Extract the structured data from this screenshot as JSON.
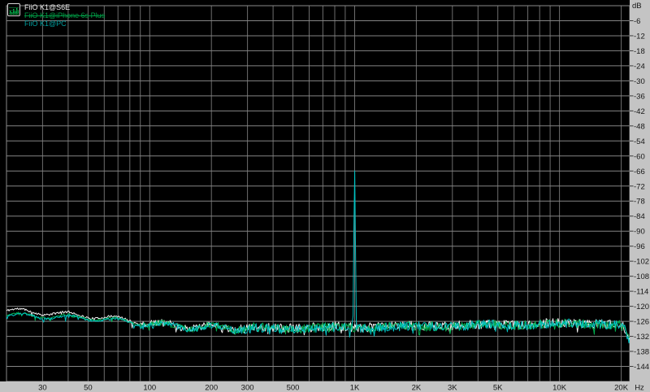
{
  "colors": {
    "plot_bg": "#000000",
    "panel_bg": "#c4c4c4",
    "grid_h": "#848484",
    "grid_v": "#6d6d6d",
    "frame": "#8a8a8a",
    "tick": "#3c3c3c",
    "label_text": "#161616",
    "icon_bar_green": "#00c050",
    "icon_grid_green": "#0a5a28"
  },
  "legend": {
    "icon_name": "spectrum-icon"
  },
  "chart_data": {
    "type": "line",
    "title": "",
    "x_axis": {
      "unit": "Hz",
      "scale": "log",
      "min": 20,
      "max": 22000,
      "gridlines": [
        20,
        30,
        40,
        50,
        60,
        70,
        80,
        90,
        100,
        200,
        300,
        400,
        500,
        600,
        700,
        800,
        900,
        1000,
        2000,
        3000,
        4000,
        5000,
        6000,
        7000,
        8000,
        9000,
        10000,
        20000
      ],
      "labeled_ticks": [
        {
          "f": 30,
          "label": "30"
        },
        {
          "f": 50,
          "label": "50"
        },
        {
          "f": 100,
          "label": "100"
        },
        {
          "f": 200,
          "label": "200"
        },
        {
          "f": 300,
          "label": "300"
        },
        {
          "f": 500,
          "label": "500"
        },
        {
          "f": 1000,
          "label": "1K"
        },
        {
          "f": 2000,
          "label": "2K"
        },
        {
          "f": 3000,
          "label": "3K"
        },
        {
          "f": 5000,
          "label": "5K"
        },
        {
          "f": 10000,
          "label": "10K"
        },
        {
          "f": 20000,
          "label": "20K"
        }
      ]
    },
    "y_axis": {
      "unit": "dB",
      "min": -150,
      "max": 0,
      "grid_step": 6,
      "label_from": -6,
      "label_to": -144,
      "label_step": 6
    },
    "series": [
      {
        "name": "FiiO K1@S6E",
        "color": "#f0f0f0",
        "legend_color": "#e8e8e8",
        "legend_struck": false,
        "seed": 11,
        "noise_peak_db": 1.85,
        "envelope_points": [
          [
            20,
            -121.6
          ],
          [
            35,
            -122.8
          ],
          [
            60,
            -124.4
          ],
          [
            90,
            -126.2
          ],
          [
            130,
            -127.6
          ],
          [
            200,
            -128.2
          ],
          [
            400,
            -128.6
          ],
          [
            1000,
            -128.2
          ],
          [
            3000,
            -127.6
          ],
          [
            8000,
            -127.0
          ],
          [
            15000,
            -126.8
          ],
          [
            20300,
            -127.2
          ],
          [
            21000,
            -129.5
          ],
          [
            21800,
            -133.5
          ]
        ],
        "spike": null
      },
      {
        "name": "FiiO K1@iPhone 6s Plus",
        "color": "#00b04e",
        "legend_color": "#009a44",
        "legend_struck": true,
        "seed": 22,
        "noise_peak_db": 1.85,
        "envelope_points": [
          [
            20,
            -123.3
          ],
          [
            35,
            -124.0
          ],
          [
            60,
            -124.9
          ],
          [
            90,
            -126.8
          ],
          [
            130,
            -127.9
          ],
          [
            200,
            -128.4
          ],
          [
            400,
            -128.8
          ],
          [
            1000,
            -128.4
          ],
          [
            3000,
            -127.8
          ],
          [
            8000,
            -127.2
          ],
          [
            15000,
            -127.0
          ],
          [
            20300,
            -127.4
          ],
          [
            21000,
            -129.8
          ],
          [
            21800,
            -133.8
          ]
        ],
        "spike": null
      },
      {
        "name": "FiiO K1@PC",
        "color": "#00c2c2",
        "legend_color": "#009e9e",
        "legend_struck": false,
        "seed": 33,
        "noise_peak_db": 1.85,
        "envelope_points": [
          [
            20,
            -123.8
          ],
          [
            35,
            -124.3
          ],
          [
            60,
            -125.2
          ],
          [
            90,
            -127.0
          ],
          [
            130,
            -128.1
          ],
          [
            200,
            -128.6
          ],
          [
            400,
            -129.0
          ],
          [
            1000,
            -128.6
          ],
          [
            3000,
            -127.9
          ],
          [
            8000,
            -127.2
          ],
          [
            15000,
            -126.9
          ],
          [
            20300,
            -127.3
          ],
          [
            21000,
            -130.0
          ],
          [
            21800,
            -134.0
          ]
        ],
        "spike": {
          "freq": 1000,
          "db": -59.5
        }
      }
    ]
  }
}
